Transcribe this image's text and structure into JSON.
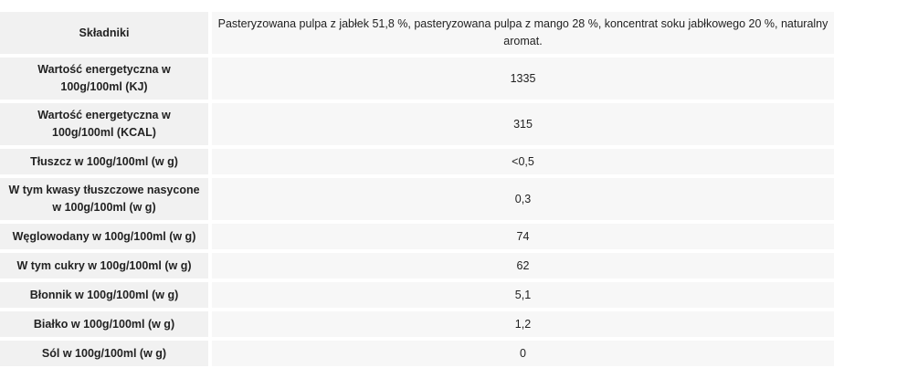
{
  "table": {
    "rows": [
      {
        "label": "Składniki",
        "value": "Pasteryzowana pulpa z jabłek 51,8 %, pasteryzowana pulpa z mango 28 %, koncentrat soku jabłkowego 20 %, naturalny aromat."
      },
      {
        "label": "Wartość energetyczna w 100g/100ml (KJ)",
        "value": "1335"
      },
      {
        "label": "Wartość energetyczna w 100g/100ml (KCAL)",
        "value": "315"
      },
      {
        "label": "Tłuszcz w 100g/100ml (w g)",
        "value": "<0,5"
      },
      {
        "label": "W tym kwasy tłuszczowe nasycone w 100g/100ml (w g)",
        "value": "0,3"
      },
      {
        "label": "Węglowodany w 100g/100ml (w g)",
        "value": "74"
      },
      {
        "label": "W tym cukry w 100g/100ml (w g)",
        "value": "62"
      },
      {
        "label": "Błonnik w 100g/100ml (w g)",
        "value": "5,1"
      },
      {
        "label": "Białko w 100g/100ml (w g)",
        "value": "1,2"
      },
      {
        "label": "Sól w 100g/100ml (w g)",
        "value": "0"
      }
    ]
  }
}
